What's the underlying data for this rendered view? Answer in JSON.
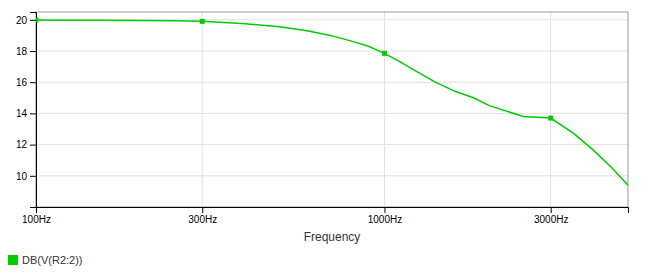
{
  "chart_data": {
    "type": "line",
    "xlabel": "Frequency",
    "x": [
      100,
      120,
      150,
      200,
      250,
      300,
      400,
      500,
      600,
      700,
      800,
      900,
      1000,
      1100,
      1200,
      1400,
      1600,
      1800,
      2000,
      2500,
      3000,
      3500,
      4000,
      4500,
      5000
    ],
    "series": [
      {
        "name": "DB(V(R2:2))",
        "color": "#00cc00",
        "values": [
          19.98,
          19.97,
          19.97,
          19.96,
          19.94,
          19.9,
          19.75,
          19.55,
          19.3,
          19.0,
          18.65,
          18.3,
          17.85,
          17.35,
          16.85,
          16.0,
          15.4,
          15.0,
          14.5,
          13.8,
          13.7,
          12.7,
          11.6,
          10.5,
          9.4
        ]
      },
      {
        "type": "scatter",
        "marker": "square",
        "color": "#00cc00",
        "x": [
          100,
          300,
          1000,
          3000
        ],
        "values": [
          19.98,
          19.9,
          17.85,
          13.7
        ]
      }
    ],
    "log": "x",
    "xlim": [
      100,
      5000
    ],
    "xticks": [
      {
        "value": 100,
        "label": "100Hz"
      },
      {
        "value": 300,
        "label": "300Hz"
      },
      {
        "value": 1000,
        "label": "1000Hz"
      },
      {
        "value": 3000,
        "label": "3000Hz"
      }
    ],
    "ylim": [
      8.0,
      20.5
    ],
    "yticks": [
      10,
      12,
      14,
      16,
      18,
      20
    ],
    "grid": true,
    "legend": "lower left"
  }
}
